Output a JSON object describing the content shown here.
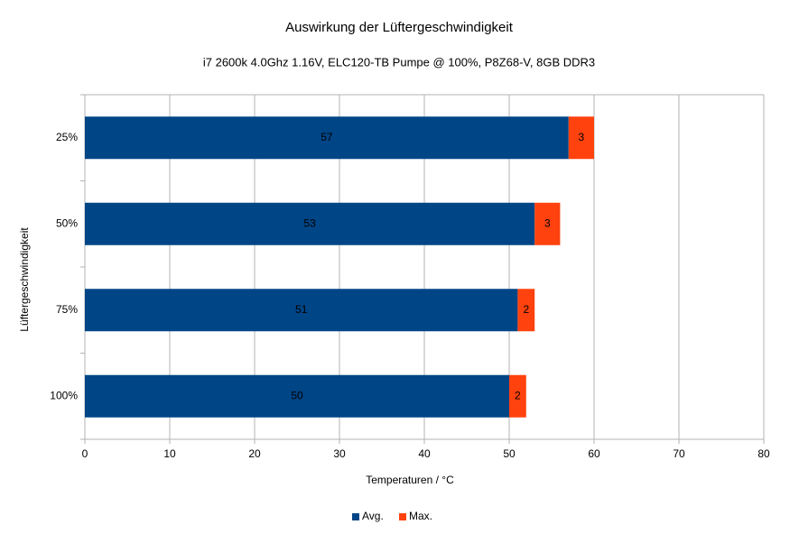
{
  "chart_data": {
    "type": "bar",
    "orientation": "horizontal",
    "stacked": true,
    "title": "Auswirkung der Lüftergeschwindigkeit",
    "subtitle": "i7 2600k 4.0Ghz 1.16V, ELC120-TB Pumpe @ 100%, P8Z68-V, 8GB DDR3",
    "x_label": "Temperaturen / °C",
    "y_label": "Lüftergeschwindigkeit",
    "categories": [
      "25%",
      "50%",
      "75%",
      "100%"
    ],
    "series": [
      {
        "name": "Avg.",
        "color": "#004586",
        "values": [
          57,
          53,
          51,
          50
        ]
      },
      {
        "name": "Max.",
        "color": "#ff420e",
        "values": [
          3,
          3,
          2,
          2
        ]
      }
    ],
    "xlim": [
      0,
      80
    ],
    "xticks": [
      0,
      10,
      20,
      30,
      40,
      50,
      60,
      70,
      80
    ],
    "grid": true,
    "legend": "bottom"
  }
}
